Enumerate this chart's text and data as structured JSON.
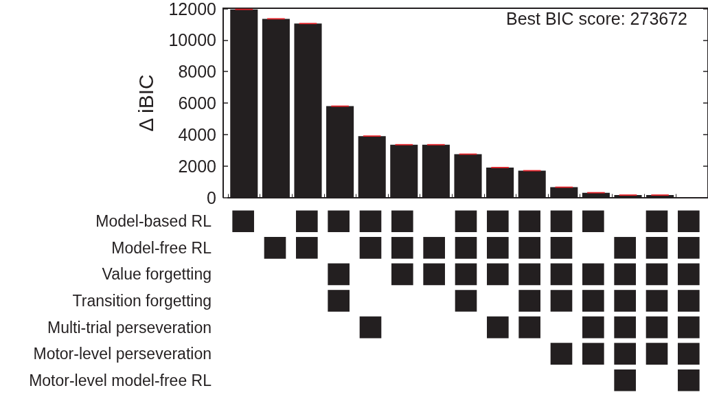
{
  "chart_data": [
    {
      "type": "bar",
      "ylabel": "Δ iBIC",
      "annotations": [
        "Best BIC score: 273672"
      ],
      "categories": [
        null,
        null,
        null,
        null,
        null,
        null,
        null,
        null,
        null,
        null,
        null,
        null,
        null,
        null,
        null
      ],
      "values": [
        11950,
        11350,
        11050,
        5800,
        3900,
        3350,
        3350,
        2750,
        1900,
        1700,
        650,
        300,
        150,
        150,
        0
      ],
      "errors": [
        40,
        40,
        40,
        40,
        40,
        40,
        40,
        40,
        40,
        40,
        40,
        40,
        40,
        40,
        null
      ],
      "color": "#231f20",
      "ylim": [
        0,
        12000
      ],
      "yticks": [
        0,
        2000,
        4000,
        6000,
        8000,
        10000,
        12000
      ]
    },
    {
      "type": "heatmap",
      "color": "#231f20",
      "categories": [
        null,
        null,
        null,
        null,
        null,
        null,
        null,
        null,
        null,
        null,
        null,
        null,
        null,
        null,
        null
      ],
      "y_categories": [
        "Model-based RL",
        "Model-free RL",
        "Value forgetting",
        "Transition forgetting",
        "Multi-trial perseveration",
        "Motor-level perseveration",
        "Motor-level model-free RL"
      ],
      "cells": [
        [
          true,
          null,
          true,
          true,
          true,
          true,
          null,
          true,
          true,
          true,
          true,
          true,
          null,
          true,
          true
        ],
        [
          null,
          true,
          true,
          null,
          true,
          true,
          true,
          true,
          true,
          true,
          true,
          null,
          true,
          true,
          true
        ],
        [
          null,
          null,
          null,
          true,
          null,
          true,
          true,
          true,
          true,
          true,
          true,
          true,
          true,
          true,
          true
        ],
        [
          null,
          null,
          null,
          true,
          null,
          null,
          null,
          true,
          null,
          true,
          true,
          true,
          true,
          true,
          true
        ],
        [
          null,
          null,
          null,
          null,
          true,
          null,
          null,
          null,
          true,
          true,
          null,
          true,
          true,
          true,
          true
        ],
        [
          null,
          null,
          null,
          null,
          null,
          null,
          null,
          null,
          null,
          null,
          true,
          true,
          true,
          true,
          true
        ],
        [
          null,
          null,
          null,
          null,
          null,
          null,
          null,
          null,
          null,
          null,
          null,
          null,
          true,
          null,
          true
        ]
      ]
    }
  ]
}
